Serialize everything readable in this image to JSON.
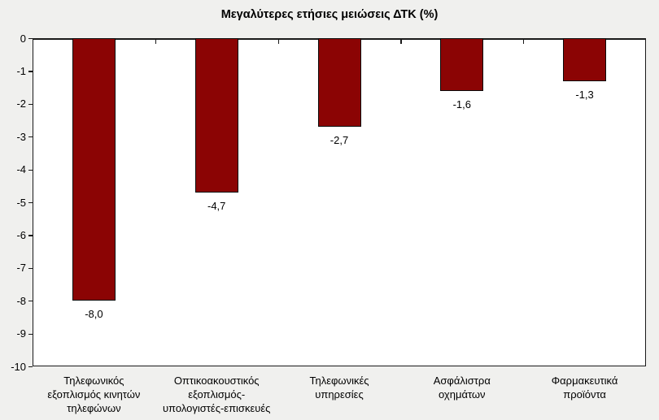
{
  "colors": {
    "background": "#F0F0EE",
    "plot_background": "#FFFFFF",
    "bar_fill": "#8B0404",
    "bar_border": "#0A0A0A",
    "axis": "#1A1A1A",
    "text": "#000000"
  },
  "chart_data": {
    "type": "bar",
    "title": "Μεγαλύτερες ετήσιες μειώσεις ΔΤΚ (%)",
    "categories": [
      "Τηλεφωνικός\nεξοπλισμός κινητών\nτηλεφώνων",
      "Οπτικοακουστικός\nεξοπλισμός-\nυπολογιστές-επισκευές",
      "Τηλεφωνικές\nυπηρεσίες",
      "Ασφάλιστρα\nοχημάτων",
      "Φαρμακευτικά\nπροϊόντα"
    ],
    "values": [
      -8.0,
      -4.7,
      -2.7,
      -1.6,
      -1.3
    ],
    "value_labels": [
      "-8,0",
      "-4,7",
      "-2,7",
      "-1,6",
      "-1,3"
    ],
    "y_ticks": [
      "0",
      "-1",
      "-2",
      "-3",
      "-4",
      "-5",
      "-6",
      "-7",
      "-8",
      "-9",
      "-10"
    ],
    "ylim": [
      -10,
      0
    ],
    "xlabel": "",
    "ylabel": "",
    "grid": false,
    "legend": "none"
  }
}
